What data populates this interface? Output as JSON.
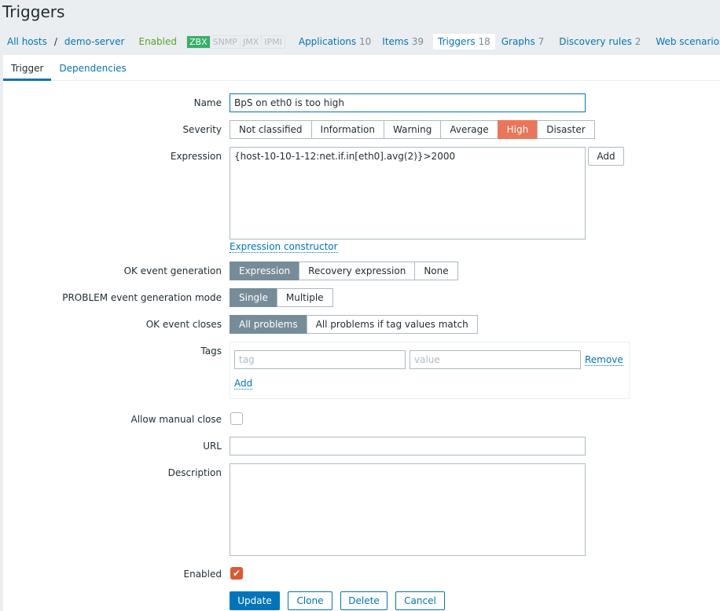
{
  "page_title": "Triggers",
  "breadcrumb": {
    "all_hosts": "All hosts",
    "sep": "/",
    "host": "demo-server",
    "status": "Enabled"
  },
  "availability": [
    "ZBX",
    "SNMP",
    "JMX",
    "IPMI"
  ],
  "host_nav": [
    {
      "label": "Applications",
      "count": "10"
    },
    {
      "label": "Items",
      "count": "39"
    },
    {
      "label": "Triggers",
      "count": "18"
    },
    {
      "label": "Graphs",
      "count": "7"
    },
    {
      "label": "Discovery rules",
      "count": "2"
    },
    {
      "label": "Web scenarios",
      "count": ""
    }
  ],
  "tabs": [
    "Trigger",
    "Dependencies"
  ],
  "form": {
    "name_label": "Name",
    "name_value": "BpS on eth0 is too high",
    "severity_label": "Severity",
    "severity_options": [
      "Not classified",
      "Information",
      "Warning",
      "Average",
      "High",
      "Disaster"
    ],
    "severity_selected": "High",
    "expression_label": "Expression",
    "expression_value": "{host-10-10-1-12:net.if.in[eth0].avg(2)}>2000",
    "add_label": "Add",
    "expression_constructor": "Expression constructor",
    "ok_gen_label": "OK event generation",
    "ok_gen_options": [
      "Expression",
      "Recovery expression",
      "None"
    ],
    "ok_gen_selected": "Expression",
    "problem_mode_label": "PROBLEM event generation mode",
    "problem_mode_options": [
      "Single",
      "Multiple"
    ],
    "problem_mode_selected": "Single",
    "ok_closes_label": "OK event closes",
    "ok_closes_options": [
      "All problems",
      "All problems if tag values match"
    ],
    "ok_closes_selected": "All problems",
    "tags_label": "Tags",
    "tag_placeholder": "tag",
    "value_placeholder": "value",
    "remove_label": "Remove",
    "tag_add_label": "Add",
    "manual_close_label": "Allow manual close",
    "manual_close_checked": false,
    "url_label": "URL",
    "url_value": "",
    "description_label": "Description",
    "description_value": "",
    "enabled_label": "Enabled",
    "enabled_checked": true
  },
  "buttons": {
    "update": "Update",
    "clone": "Clone",
    "delete": "Delete",
    "cancel": "Cancel"
  },
  "colors": {
    "accent": "#0275b8",
    "severity_high": "#e97659",
    "enabled_green": "#59a22a",
    "zbx_badge": "#34af67"
  }
}
